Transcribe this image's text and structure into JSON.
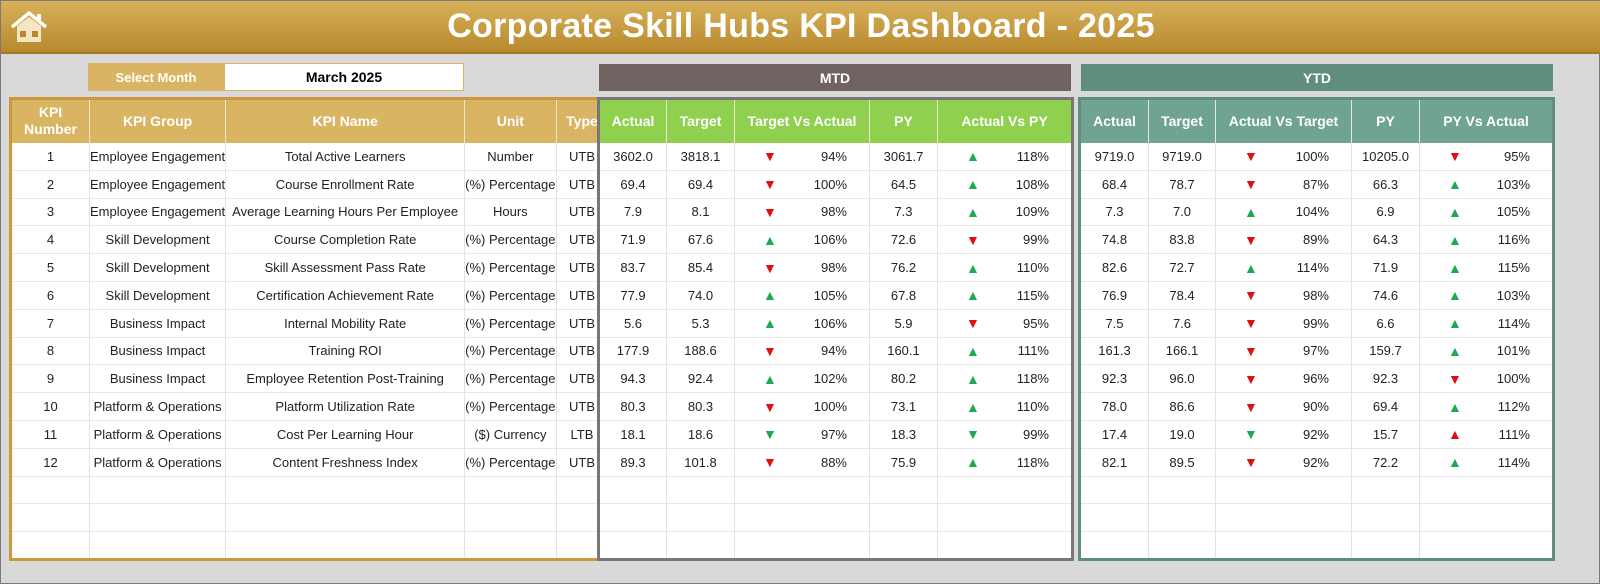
{
  "header": {
    "title": "Corporate Skill Hubs KPI Dashboard - 2025",
    "home_icon": "home-icon"
  },
  "month": {
    "label": "Select Month",
    "value": "March 2025"
  },
  "sections": {
    "mtd": "MTD",
    "ytd": "YTD"
  },
  "colors": {
    "gold": "#d8b463",
    "mtd_header": "#8fd14f",
    "ytd_header": "#6fa393",
    "mtd_band": "#6e6361",
    "ytd_band": "#5f8d7e",
    "good": "#1ea84f",
    "bad": "#e01010"
  },
  "left_headers": [
    "KPI Number",
    "KPI Group",
    "KPI Name",
    "Unit",
    "Type"
  ],
  "mtd_headers": [
    "Actual",
    "Target",
    "Target Vs Actual",
    "PY",
    "Actual Vs PY"
  ],
  "ytd_headers": [
    "Actual",
    "Target",
    "Actual Vs Target",
    "PY",
    "PY Vs Actual"
  ],
  "rows": [
    {
      "num": "1",
      "group": "Employee Engagement",
      "name": "Total Active Learners",
      "unit": "Number",
      "type": "UTB",
      "mtd": [
        "3602.0",
        "3818.1",
        [
          "down",
          "bad",
          "94%"
        ],
        "3061.7",
        [
          "up",
          "good",
          "118%"
        ]
      ],
      "ytd": [
        "9719.0",
        "9719.0",
        [
          "down",
          "bad",
          "100%"
        ],
        "10205.0",
        [
          "down",
          "bad",
          "95%"
        ]
      ]
    },
    {
      "num": "2",
      "group": "Employee Engagement",
      "name": "Course Enrollment Rate",
      "unit": "Percentage (%)",
      "type": "UTB",
      "mtd": [
        "69.4",
        "69.4",
        [
          "down",
          "bad",
          "100%"
        ],
        "64.5",
        [
          "up",
          "good",
          "108%"
        ]
      ],
      "ytd": [
        "68.4",
        "78.7",
        [
          "down",
          "bad",
          "87%"
        ],
        "66.3",
        [
          "up",
          "good",
          "103%"
        ]
      ]
    },
    {
      "num": "3",
      "group": "Employee Engagement",
      "name": "Average Learning Hours Per Employee",
      "unit": "Hours",
      "type": "UTB",
      "mtd": [
        "7.9",
        "8.1",
        [
          "down",
          "bad",
          "98%"
        ],
        "7.3",
        [
          "up",
          "good",
          "109%"
        ]
      ],
      "ytd": [
        "7.3",
        "7.0",
        [
          "up",
          "good",
          "104%"
        ],
        "6.9",
        [
          "up",
          "good",
          "105%"
        ]
      ]
    },
    {
      "num": "4",
      "group": "Skill Development",
      "name": "Course Completion Rate",
      "unit": "Percentage (%)",
      "type": "UTB",
      "mtd": [
        "71.9",
        "67.6",
        [
          "up",
          "good",
          "106%"
        ],
        "72.6",
        [
          "down",
          "bad",
          "99%"
        ]
      ],
      "ytd": [
        "74.8",
        "83.8",
        [
          "down",
          "bad",
          "89%"
        ],
        "64.3",
        [
          "up",
          "good",
          "116%"
        ]
      ]
    },
    {
      "num": "5",
      "group": "Skill Development",
      "name": "Skill Assessment Pass Rate",
      "unit": "Percentage (%)",
      "type": "UTB",
      "mtd": [
        "83.7",
        "85.4",
        [
          "down",
          "bad",
          "98%"
        ],
        "76.2",
        [
          "up",
          "good",
          "110%"
        ]
      ],
      "ytd": [
        "82.6",
        "72.7",
        [
          "up",
          "good",
          "114%"
        ],
        "71.9",
        [
          "up",
          "good",
          "115%"
        ]
      ]
    },
    {
      "num": "6",
      "group": "Skill Development",
      "name": "Certification Achievement Rate",
      "unit": "Percentage (%)",
      "type": "UTB",
      "mtd": [
        "77.9",
        "74.0",
        [
          "up",
          "good",
          "105%"
        ],
        "67.8",
        [
          "up",
          "good",
          "115%"
        ]
      ],
      "ytd": [
        "76.9",
        "78.4",
        [
          "down",
          "bad",
          "98%"
        ],
        "74.6",
        [
          "up",
          "good",
          "103%"
        ]
      ]
    },
    {
      "num": "7",
      "group": "Business Impact",
      "name": "Internal Mobility Rate",
      "unit": "Percentage (%)",
      "type": "UTB",
      "mtd": [
        "5.6",
        "5.3",
        [
          "up",
          "good",
          "106%"
        ],
        "5.9",
        [
          "down",
          "bad",
          "95%"
        ]
      ],
      "ytd": [
        "7.5",
        "7.6",
        [
          "down",
          "bad",
          "99%"
        ],
        "6.6",
        [
          "up",
          "good",
          "114%"
        ]
      ]
    },
    {
      "num": "8",
      "group": "Business Impact",
      "name": "Training ROI",
      "unit": "Percentage (%)",
      "type": "UTB",
      "mtd": [
        "177.9",
        "188.6",
        [
          "down",
          "bad",
          "94%"
        ],
        "160.1",
        [
          "up",
          "good",
          "111%"
        ]
      ],
      "ytd": [
        "161.3",
        "166.1",
        [
          "down",
          "bad",
          "97%"
        ],
        "159.7",
        [
          "up",
          "good",
          "101%"
        ]
      ]
    },
    {
      "num": "9",
      "group": "Business Impact",
      "name": "Employee Retention Post-Training",
      "unit": "Percentage (%)",
      "type": "UTB",
      "mtd": [
        "94.3",
        "92.4",
        [
          "up",
          "good",
          "102%"
        ],
        "80.2",
        [
          "up",
          "good",
          "118%"
        ]
      ],
      "ytd": [
        "92.3",
        "96.0",
        [
          "down",
          "bad",
          "96%"
        ],
        "92.3",
        [
          "down",
          "bad",
          "100%"
        ]
      ]
    },
    {
      "num": "10",
      "group": "Platform & Operations",
      "name": "Platform Utilization Rate",
      "unit": "Percentage (%)",
      "type": "UTB",
      "mtd": [
        "80.3",
        "80.3",
        [
          "down",
          "bad",
          "100%"
        ],
        "73.1",
        [
          "up",
          "good",
          "110%"
        ]
      ],
      "ytd": [
        "78.0",
        "86.6",
        [
          "down",
          "bad",
          "90%"
        ],
        "69.4",
        [
          "up",
          "good",
          "112%"
        ]
      ]
    },
    {
      "num": "11",
      "group": "Platform & Operations",
      "name": "Cost Per Learning Hour",
      "unit": "Currency ($)",
      "type": "LTB",
      "mtd": [
        "18.1",
        "18.6",
        [
          "down",
          "good",
          "97%"
        ],
        "18.3",
        [
          "down",
          "good",
          "99%"
        ]
      ],
      "ytd": [
        "17.4",
        "19.0",
        [
          "down",
          "good",
          "92%"
        ],
        "15.7",
        [
          "up",
          "bad",
          "111%"
        ]
      ]
    },
    {
      "num": "12",
      "group": "Platform & Operations",
      "name": "Content Freshness Index",
      "unit": "Percentage (%)",
      "type": "UTB",
      "mtd": [
        "89.3",
        "101.8",
        [
          "down",
          "bad",
          "88%"
        ],
        "75.9",
        [
          "up",
          "good",
          "118%"
        ]
      ],
      "ytd": [
        "82.1",
        "89.5",
        [
          "down",
          "bad",
          "92%"
        ],
        "72.2",
        [
          "up",
          "good",
          "114%"
        ]
      ]
    }
  ]
}
